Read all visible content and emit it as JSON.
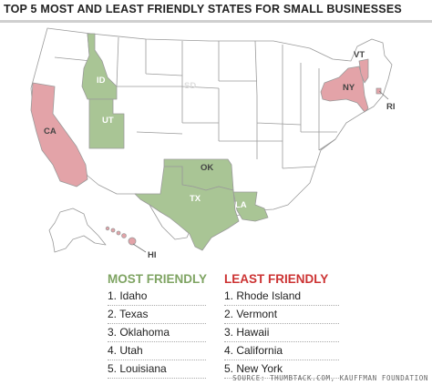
{
  "title": "TOP 5 MOST AND LEAST FRIENDLY STATES FOR SMALL BUSINESSES",
  "colors": {
    "friendly": "#a9c595",
    "unfriendly": "#e3a3a8",
    "neutral": "#ffffff",
    "borders": "#999999",
    "most_heading": "#7fa463",
    "least_heading": "#cc3333"
  },
  "map": {
    "state_labels": {
      "ID": "ID",
      "UT": "UT",
      "CA": "CA",
      "OK": "OK",
      "TX": "TX",
      "LA": "LA",
      "VT": "VT",
      "NY": "NY",
      "RI": "RI",
      "HI": "HI",
      "SD": "SD"
    },
    "highlighted": {
      "friendly": [
        "ID",
        "UT",
        "OK",
        "TX",
        "LA"
      ],
      "unfriendly": [
        "CA",
        "NY",
        "VT",
        "RI",
        "HI"
      ]
    }
  },
  "most_friendly": {
    "heading": "MOST FRIENDLY",
    "items": [
      "1. Idaho",
      "2. Texas",
      "3. Oklahoma",
      "4. Utah",
      "5. Louisiana"
    ]
  },
  "least_friendly": {
    "heading": "LEAST FRIENDLY",
    "items": [
      "1. Rhode Island",
      "2. Vermont",
      "3. Hawaii",
      "4. California",
      "5. New York"
    ]
  },
  "source": "SOURCE: THUMBTACK.COM, KAUFFMAN FOUNDATION"
}
